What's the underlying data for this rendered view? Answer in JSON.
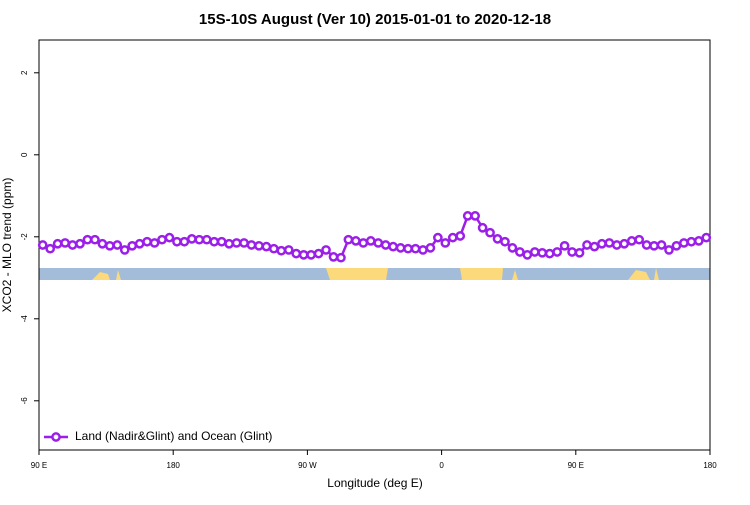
{
  "chart_data": {
    "type": "line",
    "title": "15S-10S August (Ver 10)   2015-01-01 to 2020-12-18",
    "x_label": "Longitude (deg E)",
    "y_label": "XCO2 - MLO trend (ppm)",
    "x": [
      92.5,
      97.5,
      102.5,
      107.5,
      112.5,
      117.5,
      122.5,
      127.5,
      132.5,
      137.5,
      142.5,
      147.5,
      152.5,
      157.5,
      162.5,
      167.5,
      172.5,
      177.5,
      182.5,
      187.5,
      192.5,
      197.5,
      202.5,
      207.5,
      212.5,
      217.5,
      222.5,
      227.5,
      232.5,
      237.5,
      242.5,
      247.5,
      252.5,
      257.5,
      262.5,
      267.5,
      272.5,
      277.5,
      282.5,
      287.5,
      292.5,
      297.5,
      302.5,
      307.5,
      312.5,
      317.5,
      322.5,
      327.5,
      332.5,
      337.5,
      342.5,
      347.5,
      352.5,
      357.5,
      362.5,
      367.5,
      372.5,
      377.5,
      382.5,
      387.5,
      392.5,
      397.5,
      402.5,
      407.5,
      412.5,
      417.5,
      422.5,
      427.5,
      432.5,
      437.5,
      442.5,
      447.5,
      452.5,
      457.5,
      462.5,
      467.5,
      472.5,
      477.5,
      482.5,
      487.5,
      492.5,
      497.5,
      502.5,
      507.5,
      512.5,
      517.5,
      522.5,
      527.5,
      532.5,
      537.5
    ],
    "series": [
      {
        "name": "Land (Nadir&Glint) and Ocean (Glint)",
        "color": "#9b1fe8",
        "values": [
          -2.2,
          -2.29,
          -2.17,
          -2.15,
          -2.2,
          -2.17,
          -2.07,
          -2.07,
          -2.17,
          -2.22,
          -2.2,
          -2.32,
          -2.22,
          -2.17,
          -2.12,
          -2.15,
          -2.07,
          -2.02,
          -2.12,
          -2.12,
          -2.05,
          -2.07,
          -2.07,
          -2.12,
          -2.12,
          -2.17,
          -2.15,
          -2.15,
          -2.2,
          -2.22,
          -2.24,
          -2.29,
          -2.34,
          -2.32,
          -2.41,
          -2.44,
          -2.44,
          -2.41,
          -2.32,
          -2.49,
          -2.51,
          -2.07,
          -2.1,
          -2.15,
          -2.1,
          -2.15,
          -2.2,
          -2.24,
          -2.27,
          -2.29,
          -2.29,
          -2.32,
          -2.27,
          -2.02,
          -2.15,
          -2.02,
          -1.98,
          -1.49,
          -1.49,
          -1.78,
          -1.9,
          -2.05,
          -2.12,
          -2.27,
          -2.37,
          -2.44,
          -2.37,
          -2.39,
          -2.41,
          -2.37,
          -2.22,
          -2.37,
          -2.39,
          -2.2,
          -2.24,
          -2.17,
          -2.15,
          -2.2,
          -2.17,
          -2.1,
          -2.07,
          -2.2,
          -2.22,
          -2.2,
          -2.32,
          -2.22,
          -2.15,
          -2.12,
          -2.1,
          -2.02
        ]
      }
    ],
    "xlim": [
      90,
      540
    ],
    "xticks": [
      {
        "value": 90,
        "label": "90 E"
      },
      {
        "value": 180,
        "label": "180"
      },
      {
        "value": 270,
        "label": "90 W"
      },
      {
        "value": 360,
        "label": "0"
      },
      {
        "value": 450,
        "label": "90 E"
      },
      {
        "value": 540,
        "label": "180"
      }
    ],
    "ylim": [
      -7.2,
      2.8
    ],
    "yticks": [
      2,
      0,
      -2,
      -4,
      -6
    ],
    "legend": "bottom-left"
  }
}
